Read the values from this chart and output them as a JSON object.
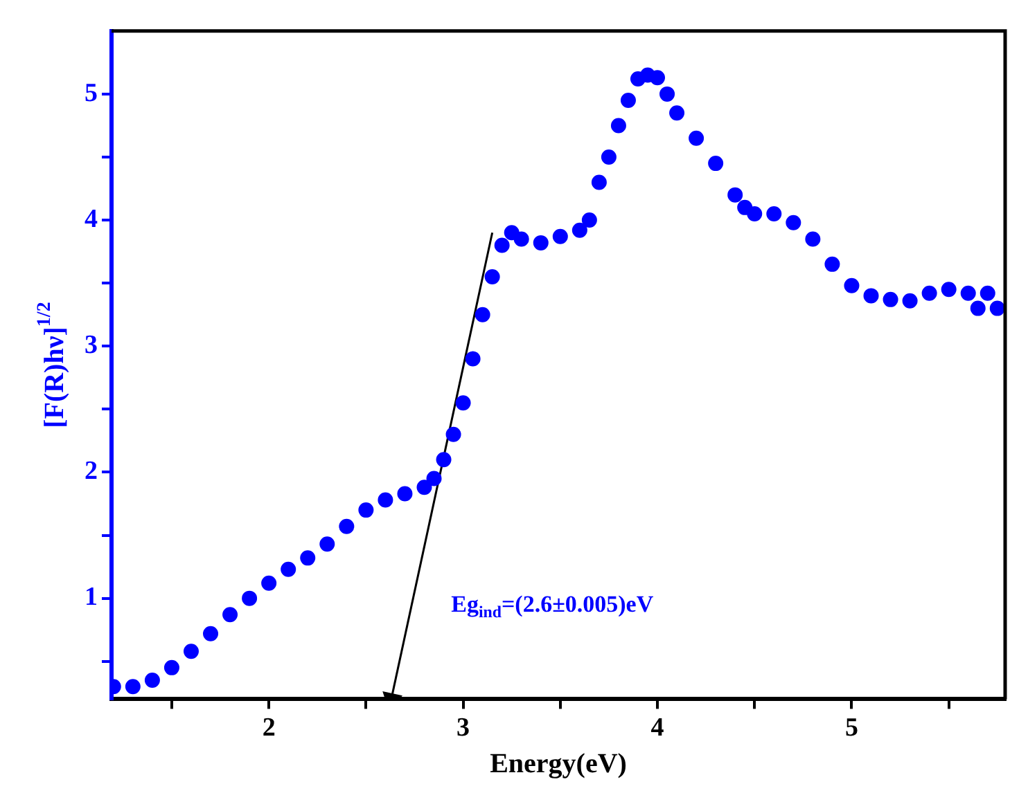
{
  "chart_data": {
    "type": "scatter",
    "xlabel": "Energy(eV)",
    "ylabel": "[F(R)hν]$^{1/2}$",
    "annotations": [
      "Eg$_{ind}$=(2.6±0.005)eV"
    ],
    "xlim": [
      1.19,
      5.79
    ],
    "xticks": [
      {
        "value": 1.5,
        "label": null
      },
      2,
      {
        "value": 2.5,
        "label": null
      },
      3,
      {
        "value": 3.5,
        "label": null
      },
      4,
      {
        "value": 4.5,
        "label": null
      },
      5,
      {
        "value": 5.5,
        "label": null
      }
    ],
    "ylim": [
      0.2,
      5.5
    ],
    "yticks": [
      {
        "value": 0.5,
        "label": null
      },
      1,
      {
        "value": 1.5,
        "label": null
      },
      2,
      {
        "value": 2.5,
        "label": null
      },
      3,
      {
        "value": 3.5,
        "label": null
      },
      4,
      {
        "value": 4.5,
        "label": null
      },
      5
    ],
    "grid": false,
    "legend": false,
    "marker": "circle",
    "series": [
      {
        "color": "#0000ff",
        "x": [
          1.2,
          1.3,
          1.4,
          1.5,
          1.6,
          1.7,
          1.8,
          1.9,
          2.0,
          2.1,
          2.2,
          2.3,
          2.4,
          2.5,
          2.6,
          2.7,
          2.8,
          2.85,
          2.9,
          2.95,
          3.0,
          3.05,
          3.1,
          3.15,
          3.2,
          3.25,
          3.3,
          3.4,
          3.5,
          3.6,
          3.65,
          3.7,
          3.75,
          3.8,
          3.85,
          3.9,
          3.95,
          4.0,
          4.05,
          4.1,
          4.2,
          4.3,
          4.4,
          4.45,
          4.5,
          4.6,
          4.7,
          4.8,
          4.9,
          5.0,
          5.1,
          5.2,
          5.3,
          5.4,
          5.5,
          5.6,
          5.65,
          5.7,
          5.75
        ],
        "values": [
          0.3,
          0.3,
          0.35,
          0.45,
          0.58,
          0.72,
          0.87,
          1.0,
          1.12,
          1.23,
          1.32,
          1.43,
          1.57,
          1.7,
          1.78,
          1.83,
          1.88,
          1.95,
          2.1,
          2.3,
          2.55,
          2.9,
          3.25,
          3.55,
          3.8,
          3.9,
          3.85,
          3.82,
          3.87,
          3.92,
          4.0,
          4.3,
          4.5,
          4.75,
          4.95,
          5.12,
          5.15,
          5.13,
          5.0,
          4.85,
          4.65,
          4.45,
          4.2,
          4.1,
          4.05,
          4.05,
          3.98,
          3.85,
          3.65,
          3.48,
          3.4,
          3.37,
          3.36,
          3.42,
          3.45,
          3.42,
          3.3,
          3.42,
          3.3
        ]
      },
      {
        "type": "line",
        "color": "#000000",
        "marker": "triangle",
        "line_style": "solid",
        "x": [
          3.15,
          2.63
        ],
        "values": [
          3.9,
          0.2
        ]
      }
    ]
  }
}
